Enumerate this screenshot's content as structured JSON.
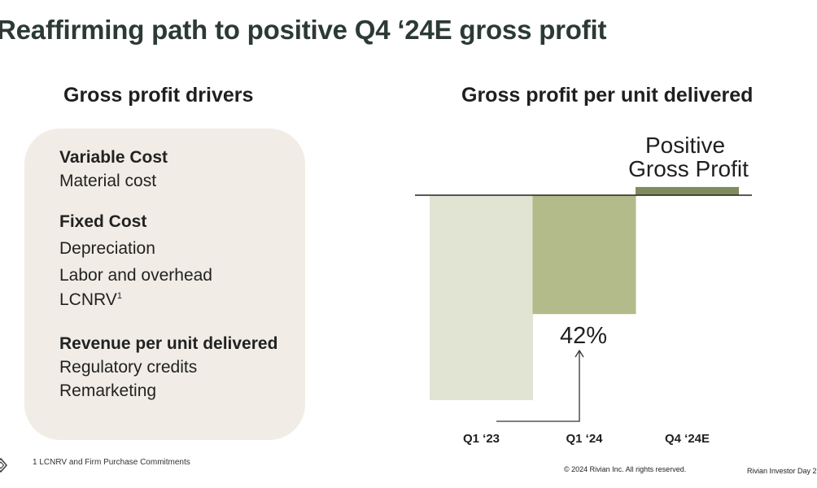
{
  "slide": {
    "title": "Reaffirming path to positive Q4 ‘24E gross profit",
    "left_heading": "Gross profit drivers",
    "right_heading": "Gross profit per unit delivered",
    "drivers": [
      {
        "heading": "Variable Cost",
        "items": [
          "Material cost"
        ]
      },
      {
        "heading": "Fixed Cost",
        "items": [
          "Depreciation",
          "Labor and overhead",
          "LCNRV"
        ]
      },
      {
        "heading": "Revenue per unit delivered",
        "items": [
          "Regulatory credits",
          "Remarketing"
        ]
      }
    ],
    "lcnrv_footnote_marker": "1",
    "footnote": "1   LCNRV and Firm Purchase Commitments",
    "copyright": "© 2024 Rivian Inc. All rights reserved.",
    "event": "Rivian Investor Day 2",
    "logo_icon": "rivian-diamond-icon"
  },
  "chart_data": {
    "type": "bar",
    "title": "Gross profit per unit delivered",
    "categories": [
      "Q1 ‘23",
      "Q1 ‘24",
      "Q4 ‘24E"
    ],
    "values": [
      -100,
      -58,
      4
    ],
    "value_note": "relative scale; Q1 ‘23 loss indexed to -100",
    "colors": [
      "#e1e3d3",
      "#b3bb8a",
      "#7f8b5d"
    ],
    "annotation": "42%",
    "positive_label_line1": "Positive",
    "positive_label_line2": "Gross Profit",
    "ylim": [
      -100,
      8
    ],
    "grid": false
  }
}
